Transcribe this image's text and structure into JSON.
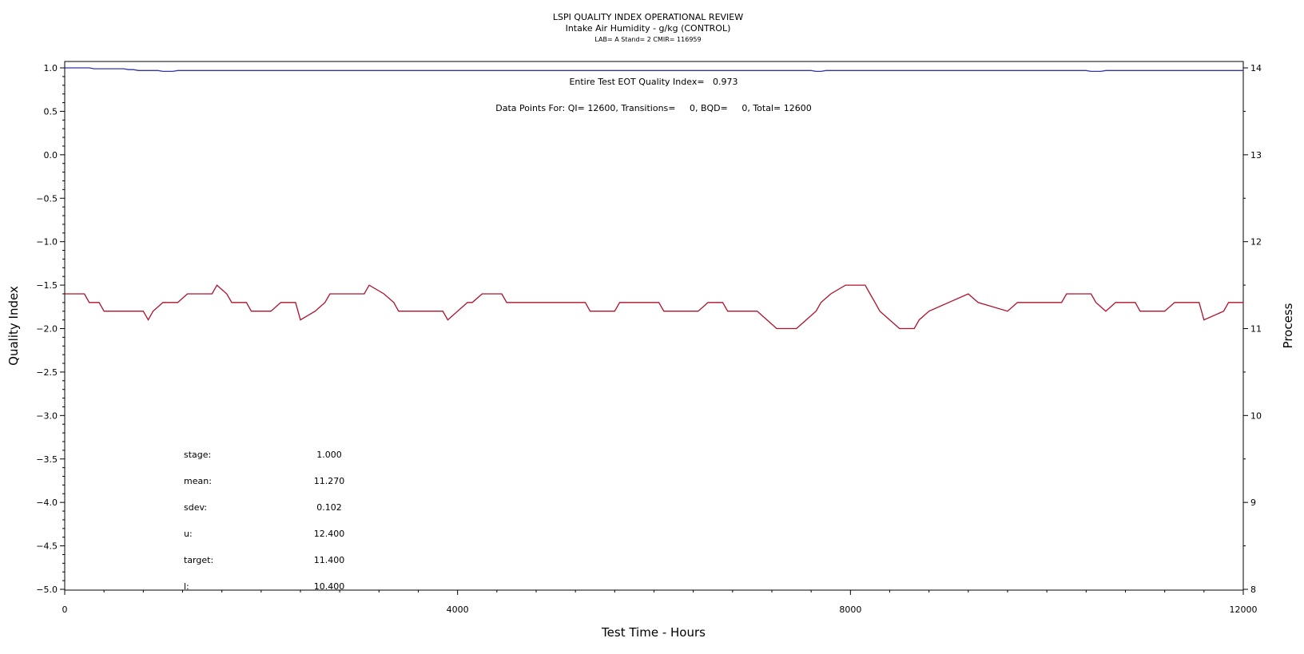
{
  "chart_data": {
    "type": "line",
    "title": "LSPI QUALITY INDEX OPERATIONAL REVIEW",
    "subtitle": "Intake Air Humidity - g/kg (CONTROL)",
    "subtitle2": "LAB= A Stand= 2 CMIR= 116959",
    "xlabel": "Test Time - Hours",
    "ylabel": "Quality Index",
    "y2label": "Process",
    "xlim": [
      0,
      12000
    ],
    "ylim": [
      -5.0,
      1.0
    ],
    "y2lim": [
      8,
      14
    ],
    "xticks": [
      "0",
      "4000",
      "8000",
      "12000"
    ],
    "yticks": [
      "1.0",
      "0.5",
      "0.0",
      "-0.5",
      "-1.0",
      "-1.5",
      "-2.0",
      "-2.5",
      "-3.0",
      "-3.5",
      "-4.0",
      "-4.5",
      "-5.0"
    ],
    "y2ticks": [
      "14",
      "13",
      "12",
      "11",
      "10",
      "9",
      "8"
    ],
    "annotations": {
      "eot": "Entire Test EOT Quality Index=   0.973",
      "points": "Data Points For: QI= 12600, Transitions=     0, BQD=     0, Total= 12600"
    },
    "stats": [
      {
        "label": "stage:",
        "value": "1.000"
      },
      {
        "label": "mean:",
        "value": "11.270"
      },
      {
        "label": "sdev:",
        "value": "0.102"
      },
      {
        "label": "u:",
        "value": "12.400"
      },
      {
        "label": "target:",
        "value": "11.400"
      },
      {
        "label": "l:",
        "value": "10.400"
      }
    ],
    "colors": {
      "quality_index": "#3333aa",
      "process": "#b0102a"
    },
    "series": [
      {
        "axis": "left",
        "points": [
          [
            0,
            1.0
          ],
          [
            250,
            1.0
          ],
          [
            300,
            0.99
          ],
          [
            600,
            0.99
          ],
          [
            650,
            0.98
          ],
          [
            700,
            0.98
          ],
          [
            750,
            0.97
          ],
          [
            950,
            0.97
          ],
          [
            1000,
            0.96
          ],
          [
            1100,
            0.96
          ],
          [
            1150,
            0.97
          ],
          [
            7600,
            0.97
          ],
          [
            7650,
            0.96
          ],
          [
            7700,
            0.96
          ],
          [
            7750,
            0.97
          ],
          [
            10400,
            0.97
          ],
          [
            10450,
            0.96
          ],
          [
            10550,
            0.96
          ],
          [
            10600,
            0.97
          ],
          [
            12000,
            0.97
          ]
        ]
      },
      {
        "axis": "right",
        "points": [
          [
            0,
            11.4
          ],
          [
            200,
            11.4
          ],
          [
            250,
            11.3
          ],
          [
            350,
            11.3
          ],
          [
            400,
            11.2
          ],
          [
            800,
            11.2
          ],
          [
            850,
            11.1
          ],
          [
            900,
            11.2
          ],
          [
            1000,
            11.3
          ],
          [
            1150,
            11.3
          ],
          [
            1250,
            11.4
          ],
          [
            1500,
            11.4
          ],
          [
            1550,
            11.5
          ],
          [
            1650,
            11.4
          ],
          [
            1700,
            11.3
          ],
          [
            1850,
            11.3
          ],
          [
            1900,
            11.2
          ],
          [
            2100,
            11.2
          ],
          [
            2200,
            11.3
          ],
          [
            2350,
            11.3
          ],
          [
            2400,
            11.1
          ],
          [
            2550,
            11.2
          ],
          [
            2650,
            11.3
          ],
          [
            2700,
            11.4
          ],
          [
            3050,
            11.4
          ],
          [
            3100,
            11.5
          ],
          [
            3250,
            11.4
          ],
          [
            3350,
            11.3
          ],
          [
            3400,
            11.2
          ],
          [
            3850,
            11.2
          ],
          [
            3900,
            11.1
          ],
          [
            4100,
            11.3
          ],
          [
            4150,
            11.3
          ],
          [
            4250,
            11.4
          ],
          [
            4450,
            11.4
          ],
          [
            4500,
            11.3
          ],
          [
            5300,
            11.3
          ],
          [
            5350,
            11.2
          ],
          [
            5600,
            11.2
          ],
          [
            5650,
            11.3
          ],
          [
            6050,
            11.3
          ],
          [
            6100,
            11.2
          ],
          [
            6450,
            11.2
          ],
          [
            6550,
            11.3
          ],
          [
            6700,
            11.3
          ],
          [
            6750,
            11.2
          ],
          [
            7050,
            11.2
          ],
          [
            7150,
            11.1
          ],
          [
            7250,
            11.0
          ],
          [
            7450,
            11.0
          ],
          [
            7550,
            11.1
          ],
          [
            7650,
            11.2
          ],
          [
            7700,
            11.3
          ],
          [
            7800,
            11.4
          ],
          [
            7950,
            11.5
          ],
          [
            8150,
            11.5
          ],
          [
            8200,
            11.4
          ],
          [
            8250,
            11.3
          ],
          [
            8300,
            11.2
          ],
          [
            8400,
            11.1
          ],
          [
            8500,
            11.0
          ],
          [
            8650,
            11.0
          ],
          [
            8700,
            11.1
          ],
          [
            8800,
            11.2
          ],
          [
            9000,
            11.3
          ],
          [
            9200,
            11.4
          ],
          [
            9300,
            11.3
          ],
          [
            9600,
            11.2
          ],
          [
            9700,
            11.3
          ],
          [
            10150,
            11.3
          ],
          [
            10200,
            11.4
          ],
          [
            10450,
            11.4
          ],
          [
            10500,
            11.3
          ],
          [
            10600,
            11.2
          ],
          [
            10700,
            11.3
          ],
          [
            10900,
            11.3
          ],
          [
            10950,
            11.2
          ],
          [
            11200,
            11.2
          ],
          [
            11300,
            11.3
          ],
          [
            11550,
            11.3
          ],
          [
            11600,
            11.1
          ],
          [
            11800,
            11.2
          ],
          [
            11850,
            11.3
          ],
          [
            12000,
            11.3
          ]
        ]
      }
    ]
  }
}
